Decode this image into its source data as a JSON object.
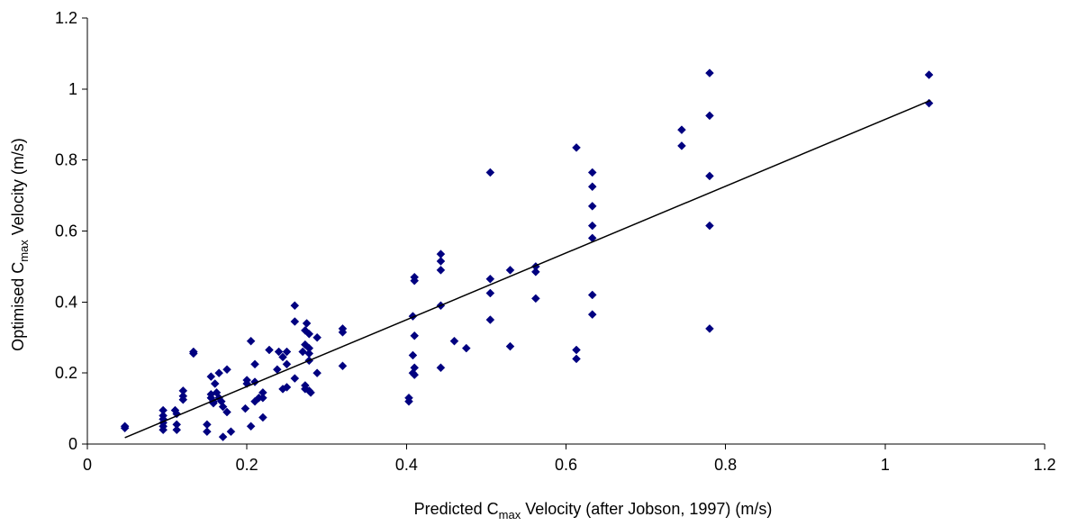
{
  "chart_data": {
    "type": "scatter",
    "title": "",
    "xlabel": {
      "before": "Predicted C",
      "sub": "max",
      "after": " Velocity (after Jobson, 1997) (m/s)"
    },
    "ylabel": {
      "before": "Optimised C",
      "sub": "max",
      "after": " Velocity (m/s)"
    },
    "xlim": [
      0,
      1.2
    ],
    "ylim": [
      0,
      1.2
    ],
    "x_ticks": [
      "0",
      "0.2",
      "0.4",
      "0.6",
      "0.8",
      "1",
      "1.2"
    ],
    "y_ticks": [
      "0",
      "0.2",
      "0.4",
      "0.6",
      "0.8",
      "1",
      "1.2"
    ],
    "grid": false,
    "legend": "none",
    "marker": "diamond",
    "marker_color": "#000080",
    "trendline": {
      "x": [
        0.047,
        1.057
      ],
      "y": [
        0.018,
        0.968
      ],
      "color": "#000000"
    },
    "series": [
      {
        "points": [
          [
            0.047,
            0.05
          ],
          [
            0.047,
            0.045
          ],
          [
            0.095,
            0.095
          ],
          [
            0.095,
            0.08
          ],
          [
            0.095,
            0.07
          ],
          [
            0.095,
            0.06
          ],
          [
            0.095,
            0.05
          ],
          [
            0.095,
            0.04
          ],
          [
            0.11,
            0.095
          ],
          [
            0.112,
            0.085
          ],
          [
            0.112,
            0.055
          ],
          [
            0.112,
            0.04
          ],
          [
            0.12,
            0.15
          ],
          [
            0.12,
            0.135
          ],
          [
            0.12,
            0.125
          ],
          [
            0.133,
            0.26
          ],
          [
            0.133,
            0.255
          ],
          [
            0.15,
            0.055
          ],
          [
            0.15,
            0.035
          ],
          [
            0.155,
            0.19
          ],
          [
            0.155,
            0.14
          ],
          [
            0.155,
            0.13
          ],
          [
            0.158,
            0.12
          ],
          [
            0.158,
            0.115
          ],
          [
            0.16,
            0.17
          ],
          [
            0.162,
            0.145
          ],
          [
            0.165,
            0.2
          ],
          [
            0.165,
            0.13
          ],
          [
            0.168,
            0.12
          ],
          [
            0.17,
            0.02
          ],
          [
            0.17,
            0.105
          ],
          [
            0.175,
            0.21
          ],
          [
            0.175,
            0.09
          ],
          [
            0.18,
            0.035
          ],
          [
            0.198,
            0.1
          ],
          [
            0.2,
            0.18
          ],
          [
            0.2,
            0.17
          ],
          [
            0.205,
            0.29
          ],
          [
            0.205,
            0.05
          ],
          [
            0.21,
            0.225
          ],
          [
            0.21,
            0.175
          ],
          [
            0.21,
            0.12
          ],
          [
            0.215,
            0.13
          ],
          [
            0.22,
            0.145
          ],
          [
            0.22,
            0.13
          ],
          [
            0.22,
            0.075
          ],
          [
            0.228,
            0.265
          ],
          [
            0.238,
            0.21
          ],
          [
            0.24,
            0.26
          ],
          [
            0.245,
            0.245
          ],
          [
            0.245,
            0.155
          ],
          [
            0.25,
            0.26
          ],
          [
            0.25,
            0.225
          ],
          [
            0.25,
            0.16
          ],
          [
            0.26,
            0.39
          ],
          [
            0.26,
            0.345
          ],
          [
            0.26,
            0.185
          ],
          [
            0.27,
            0.26
          ],
          [
            0.273,
            0.32
          ],
          [
            0.273,
            0.28
          ],
          [
            0.273,
            0.165
          ],
          [
            0.273,
            0.155
          ],
          [
            0.275,
            0.34
          ],
          [
            0.278,
            0.31
          ],
          [
            0.278,
            0.27
          ],
          [
            0.278,
            0.255
          ],
          [
            0.278,
            0.235
          ],
          [
            0.278,
            0.15
          ],
          [
            0.28,
            0.145
          ],
          [
            0.288,
            0.3
          ],
          [
            0.288,
            0.2
          ],
          [
            0.32,
            0.325
          ],
          [
            0.32,
            0.315
          ],
          [
            0.32,
            0.22
          ],
          [
            0.403,
            0.13
          ],
          [
            0.403,
            0.12
          ],
          [
            0.408,
            0.36
          ],
          [
            0.408,
            0.25
          ],
          [
            0.408,
            0.2
          ],
          [
            0.41,
            0.47
          ],
          [
            0.41,
            0.46
          ],
          [
            0.41,
            0.305
          ],
          [
            0.41,
            0.215
          ],
          [
            0.41,
            0.195
          ],
          [
            0.443,
            0.535
          ],
          [
            0.443,
            0.515
          ],
          [
            0.443,
            0.49
          ],
          [
            0.443,
            0.39
          ],
          [
            0.443,
            0.215
          ],
          [
            0.46,
            0.29
          ],
          [
            0.475,
            0.27
          ],
          [
            0.505,
            0.765
          ],
          [
            0.505,
            0.465
          ],
          [
            0.505,
            0.425
          ],
          [
            0.505,
            0.35
          ],
          [
            0.53,
            0.49
          ],
          [
            0.53,
            0.275
          ],
          [
            0.562,
            0.5
          ],
          [
            0.562,
            0.485
          ],
          [
            0.562,
            0.41
          ],
          [
            0.613,
            0.835
          ],
          [
            0.613,
            0.265
          ],
          [
            0.613,
            0.24
          ],
          [
            0.633,
            0.765
          ],
          [
            0.633,
            0.725
          ],
          [
            0.633,
            0.67
          ],
          [
            0.633,
            0.615
          ],
          [
            0.633,
            0.58
          ],
          [
            0.633,
            0.42
          ],
          [
            0.633,
            0.365
          ],
          [
            0.745,
            0.885
          ],
          [
            0.745,
            0.84
          ],
          [
            0.78,
            1.045
          ],
          [
            0.78,
            0.925
          ],
          [
            0.78,
            0.755
          ],
          [
            0.78,
            0.615
          ],
          [
            0.78,
            0.325
          ],
          [
            1.055,
            1.04
          ],
          [
            1.055,
            0.96
          ]
        ]
      }
    ]
  }
}
